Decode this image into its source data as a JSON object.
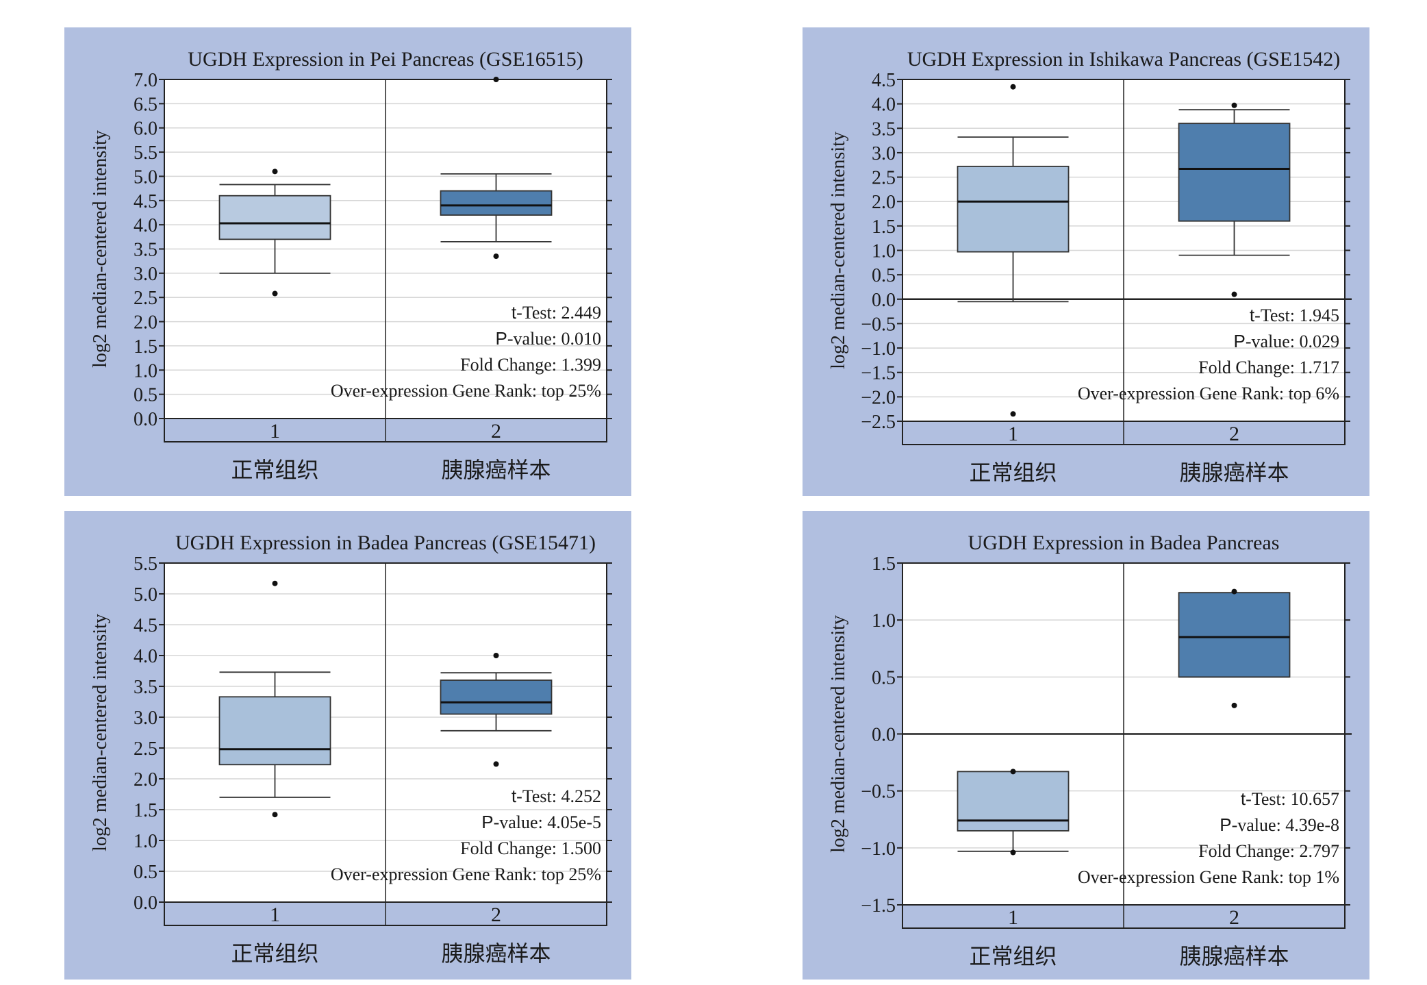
{
  "colors": {
    "panel_bg": "#b1bfe0",
    "plot_bg": "#ffffff",
    "box_normal": "#b8cae0",
    "box_normal_alt": "#a9c0da",
    "box_cancer": "#4f7ead",
    "grid": "#d6d6d6",
    "axis": "#222222"
  },
  "chart_data": [
    {
      "type": "box",
      "title": "UGDH Expression in Pei Pancreas (GSE16515)",
      "ylabel": "log2 median-centered intensity",
      "ylim": [
        0,
        7
      ],
      "yticks": [
        "0.0",
        "0.5",
        "1.0",
        "1.5",
        "2.0",
        "2.5",
        "3.0",
        "3.5",
        "4.0",
        "4.5",
        "5.0",
        "5.5",
        "6.0",
        "6.5",
        "7.0"
      ],
      "group_numbers": [
        "1",
        "2"
      ],
      "categories": [
        "正常组织",
        "胰腺癌样本"
      ],
      "boxes": [
        {
          "whisker_low": 3.0,
          "q1": 3.7,
          "median": 4.03,
          "q3": 4.6,
          "whisker_high": 4.83,
          "outliers": [
            2.58,
            5.1
          ]
        },
        {
          "whisker_low": 3.65,
          "q1": 4.2,
          "median": 4.4,
          "q3": 4.7,
          "whisker_high": 5.05,
          "outliers": [
            3.35,
            7.0
          ]
        }
      ],
      "zero_line": false,
      "stats": [
        {
          "key": "t",
          "text": "-Test: 2.449"
        },
        {
          "key": "P",
          "text": "-value: 0.010"
        },
        {
          "key": "",
          "text": "Fold Change: 1.399"
        },
        {
          "key": "",
          "text": "Over-expression Gene Rank: top 25%"
        }
      ]
    },
    {
      "type": "box",
      "title": "UGDH Expression in Ishikawa Pancreas (GSE1542)",
      "ylabel": "log2 median-centered intensity",
      "ylim": [
        -2.5,
        4.5
      ],
      "yticks": [
        "-2.5",
        "-2.0",
        "-1.5",
        "-1.0",
        "-0.5",
        "0.0",
        "0.5",
        "1.0",
        "1.5",
        "2.0",
        "2.5",
        "3.0",
        "3.5",
        "4.0",
        "4.5"
      ],
      "group_numbers": [
        "1",
        "2"
      ],
      "categories": [
        "正常组织",
        "胰腺癌样本"
      ],
      "boxes": [
        {
          "whisker_low": -0.05,
          "q1": 0.97,
          "median": 2.0,
          "q3": 2.72,
          "whisker_high": 3.32,
          "outliers": [
            -2.35,
            4.35
          ]
        },
        {
          "whisker_low": 0.9,
          "q1": 1.6,
          "median": 2.67,
          "q3": 3.6,
          "whisker_high": 3.88,
          "outliers": [
            0.1,
            3.97
          ]
        }
      ],
      "zero_line": true,
      "stats": [
        {
          "key": "t",
          "text": "-Test: 1.945"
        },
        {
          "key": "P",
          "text": "-value: 0.029"
        },
        {
          "key": "",
          "text": "Fold Change: 1.717"
        },
        {
          "key": "",
          "text": "Over-expression Gene Rank: top 6%"
        }
      ]
    },
    {
      "type": "box",
      "title": "UGDH Expression in Badea Pancreas (GSE15471)",
      "ylabel": "log2 median-centered intensity",
      "ylim": [
        0,
        5.5
      ],
      "yticks": [
        "0.0",
        "0.5",
        "1.0",
        "1.5",
        "2.0",
        "2.5",
        "3.0",
        "3.5",
        "4.0",
        "4.5",
        "5.0",
        "5.5"
      ],
      "group_numbers": [
        "1",
        "2"
      ],
      "categories": [
        "正常组织",
        "胰腺癌样本"
      ],
      "boxes": [
        {
          "whisker_low": 1.7,
          "q1": 2.23,
          "median": 2.48,
          "q3": 3.33,
          "whisker_high": 3.73,
          "outliers": [
            1.42,
            5.17
          ]
        },
        {
          "whisker_low": 2.78,
          "q1": 3.05,
          "median": 3.24,
          "q3": 3.6,
          "whisker_high": 3.72,
          "outliers": [
            2.24,
            4.0
          ]
        }
      ],
      "zero_line": false,
      "stats": [
        {
          "key": "t",
          "text": "-Test: 4.252"
        },
        {
          "key": "P",
          "text": "-value: 4.05e-5"
        },
        {
          "key": "",
          "text": "Fold Change: 1.500"
        },
        {
          "key": "",
          "text": "Over-expression Gene Rank: top 25%"
        }
      ]
    },
    {
      "type": "box",
      "title": "UGDH Expression in Badea Pancreas",
      "ylabel": "log2 median-centered intensity",
      "ylim": [
        -1.5,
        1.5
      ],
      "yticks": [
        "-1.5",
        "-1.0",
        "-0.5",
        "0.0",
        "0.5",
        "1.0",
        "1.5"
      ],
      "group_numbers": [
        "1",
        "2"
      ],
      "categories": [
        "正常组织",
        "胰腺癌样本"
      ],
      "boxes": [
        {
          "whisker_low": -1.03,
          "q1": -0.85,
          "median": -0.76,
          "q3": -0.33,
          "whisker_high": -0.33,
          "outliers": [
            -1.04,
            -0.33
          ]
        },
        {
          "whisker_low": 0.5,
          "q1": 0.5,
          "median": 0.85,
          "q3": 1.24,
          "whisker_high": 1.24,
          "outliers": [
            0.25,
            1.25
          ]
        }
      ],
      "zero_line": true,
      "stats": [
        {
          "key": "t",
          "text": "-Test: 10.657"
        },
        {
          "key": "P",
          "text": "-value: 4.39e-8"
        },
        {
          "key": "",
          "text": "Fold Change: 2.797"
        },
        {
          "key": "",
          "text": "Over-expression Gene Rank: top 1%"
        }
      ]
    }
  ]
}
